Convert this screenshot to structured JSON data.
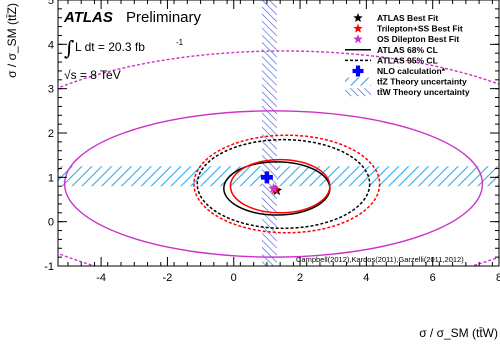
{
  "chart_data": {
    "type": "contour",
    "title": "",
    "xlabel": "σ / σ_SM (tt̄W)",
    "ylabel": "σ / σ_SM (tt̄Z)",
    "xlim": [
      -5.3,
      8
    ],
    "ylim": [
      -1,
      5
    ],
    "xticks": [
      -4,
      -2,
      0,
      2,
      4,
      6,
      8
    ],
    "yticks": [
      -1,
      0,
      1,
      2,
      3,
      4,
      5
    ],
    "atlas_label": "ATLAS",
    "atlas_sub": "Preliminary",
    "lumi_text": "L dt = 20.3 fb",
    "lumi_sup": "-1",
    "energy_text": "√s = 8 TeV",
    "references": "Campbell(2012),Kardos(2011),Garzelli(2011,2012)",
    "colors": {
      "atlas": "#000000",
      "trilepton": "#ff0000",
      "os_dilepton": "#cc33cc",
      "nlo": "#0000ff",
      "ttz_band": "#33aaee",
      "ttw_band": "#4a5fd6"
    },
    "points": [
      {
        "name": "ATLAS Best Fit",
        "x": 1.3,
        "y": 0.7
      },
      {
        "name": "Trilepton+SS Best Fit",
        "x": 1.25,
        "y": 0.72
      },
      {
        "name": "OS Dilepton Best Fit",
        "x": 1.2,
        "y": 0.75
      },
      {
        "name": "NLO calculation*",
        "x": 1.0,
        "y": 1.0
      }
    ],
    "contours": [
      {
        "name": "ATLAS 68% CL",
        "cx": 1.3,
        "cy": 0.75,
        "rx": 1.6,
        "ry": 0.6,
        "style": "solid",
        "color": "#000000"
      },
      {
        "name": "ATLAS 95% CL",
        "cx": 1.5,
        "cy": 0.85,
        "rx": 2.6,
        "ry": 1.0,
        "style": "dashed",
        "color": "#000000"
      },
      {
        "name": "Trilepton+SS 68% CL",
        "cx": 1.4,
        "cy": 0.8,
        "rx": 1.5,
        "ry": 0.6,
        "style": "solid",
        "color": "#ff0000"
      },
      {
        "name": "Trilepton+SS 95% CL",
        "cx": 1.6,
        "cy": 0.85,
        "rx": 2.8,
        "ry": 1.1,
        "style": "dashed",
        "color": "#ff0000"
      },
      {
        "name": "OS Dilepton 68% CL",
        "cx": 1.2,
        "cy": 0.85,
        "rx": 6.3,
        "ry": 1.65,
        "style": "solid",
        "color": "#cc33cc"
      },
      {
        "name": "OS Dilepton 95% CL",
        "cx": 1.5,
        "cy": 1.15,
        "rx": 9.4,
        "ry": 2.7,
        "style": "dashed",
        "color": "#cc33cc"
      }
    ],
    "bands": [
      {
        "name": "tt̄Z Theory uncertainty",
        "axis": "y",
        "min": 0.8,
        "max": 1.25
      },
      {
        "name": "tt̄W Theory uncertainty",
        "axis": "x",
        "min": 0.85,
        "max": 1.3
      }
    ],
    "legend": {
      "position": "top-right",
      "entries": [
        {
          "label": "ATLAS Best Fit",
          "symbol": "star",
          "color": "#000000"
        },
        {
          "label": "Trilepton+SS Best Fit",
          "symbol": "star",
          "color": "#ff0000"
        },
        {
          "label": "OS Dilepton Best Fit",
          "symbol": "star",
          "color": "#cc33cc"
        },
        {
          "label": "ATLAS 68% CL",
          "symbol": "line-solid",
          "color": "#000000"
        },
        {
          "label": "ATLAS 95% CL",
          "symbol": "line-dashed",
          "color": "#000000"
        },
        {
          "label": "NLO calculation*",
          "symbol": "cross",
          "color": "#0000ff"
        },
        {
          "label": "tt̄Z Theory uncertainty",
          "symbol": "hatch-ttz",
          "color": "#33aaee"
        },
        {
          "label": "tt̄W Theory uncertainty",
          "symbol": "hatch-ttw",
          "color": "#4a5fd6"
        }
      ]
    }
  }
}
